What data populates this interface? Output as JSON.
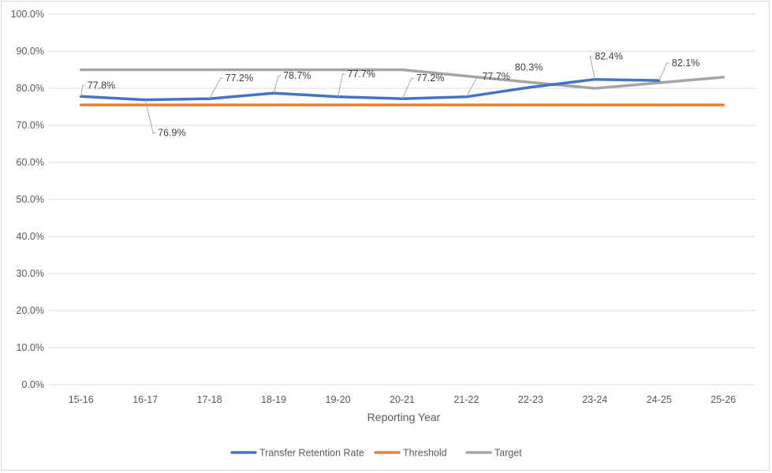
{
  "chart_data": {
    "type": "line",
    "title": "",
    "xlabel": "Reporting Year",
    "ylabel": "",
    "categories": [
      "15-16",
      "16-17",
      "17-18",
      "18-19",
      "19-20",
      "20-21",
      "21-22",
      "22-23",
      "23-24",
      "24-25",
      "25-26"
    ],
    "ylim": [
      0,
      100
    ],
    "yticks": [
      "0.0%",
      "10.0%",
      "20.0%",
      "30.0%",
      "40.0%",
      "50.0%",
      "60.0%",
      "70.0%",
      "80.0%",
      "90.0%",
      "100.0%"
    ],
    "grid": true,
    "legend_position": "bottom",
    "series": [
      {
        "name": "Transfer Retention Rate",
        "color": "#4472C4",
        "values": [
          77.8,
          76.9,
          77.2,
          78.7,
          77.7,
          77.2,
          77.7,
          80.3,
          82.4,
          82.1,
          null
        ],
        "labels": [
          "77.8%",
          "76.9%",
          "77.2%",
          "78.7%",
          "77.7%",
          "77.2%",
          "77.7%",
          "80.3%",
          "82.4%",
          "82.1%",
          null
        ]
      },
      {
        "name": "Threshold",
        "color": "#ED7D31",
        "values": [
          75.5,
          75.5,
          75.5,
          75.5,
          75.5,
          75.5,
          75.5,
          75.5,
          75.5,
          75.5,
          75.5
        ]
      },
      {
        "name": "Target",
        "color": "#A5A5A5",
        "values": [
          85,
          85,
          85,
          85,
          85,
          85,
          83.3,
          81.6,
          80,
          81.5,
          83
        ]
      }
    ]
  }
}
